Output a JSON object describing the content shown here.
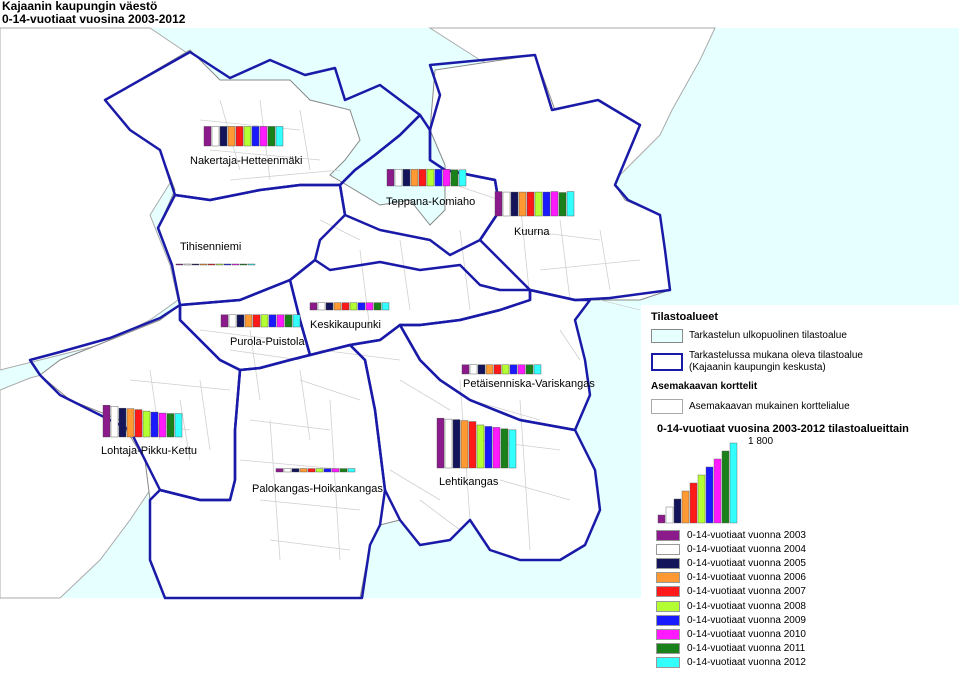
{
  "header": {
    "title": "Kajaanin kaupungin väestö",
    "subtitle": "0-14-vuotiaat vuosina 2003-2012"
  },
  "colors": {
    "sea": "#e6ffff",
    "land": "#ffffff",
    "boundary": "#1a1aa8",
    "years": [
      "#8b1a8b",
      "#ffffff",
      "#14145a",
      "#ff9933",
      "#ff1a1a",
      "#b3ff33",
      "#1a1aff",
      "#ff1aff",
      "#1a801a",
      "#33ffff"
    ]
  },
  "areas": [
    {
      "name": "Nakertaja-Hetteenmäki"
    },
    {
      "name": "Teppana-Komiaho"
    },
    {
      "name": "Kuurna"
    },
    {
      "name": "Tihisenniemi"
    },
    {
      "name": "Keskikaupunki"
    },
    {
      "name": "Purola-Puistola"
    },
    {
      "name": "Petäisenniska-Variskangas"
    },
    {
      "name": "Lohtaja-Pikku-Kettu"
    },
    {
      "name": "Palokangas-Hoikankangas"
    },
    {
      "name": "Lehtikangas"
    }
  ],
  "legend": {
    "title": "Tilastoalueet",
    "outside_label": "Tarkastelun ulkopuolinen tilastoalue",
    "inside_label_1": "Tarkastelussa mukana oleva tilastoalue",
    "inside_label_2": "(Kajaanin kaupungin keskusta)",
    "blocks_title": "Asemakaavan korttelit",
    "blocks_label": "Asemakaavan mukainen korttelialue",
    "chart_title": "0-14-vuotiaat vuosina 2003-2012 tilastoalueittain",
    "scale_value": "1 800",
    "years": [
      "0-14-vuotiaat vuonna 2003",
      "0-14-vuotiaat vuonna 2004",
      "0-14-vuotiaat vuonna 2005",
      "0-14-vuotiaat vuonna 2006",
      "0-14-vuotiaat vuonna 2007",
      "0-14-vuotiaat vuonna 2008",
      "0-14-vuotiaat vuonna 2009",
      "0-14-vuotiaat vuonna 2010",
      "0-14-vuotiaat vuonna 2011",
      "0-14-vuotiaat vuonna 2012"
    ]
  },
  "chart_data": {
    "type": "bar",
    "scale_max": 1800,
    "categories": [
      "2003",
      "2004",
      "2005",
      "2006",
      "2007",
      "2008",
      "2009",
      "2010",
      "2011",
      "2012"
    ],
    "series": [
      {
        "name": "Nakertaja-Hetteenmäki",
        "values": [
          400,
          400,
          400,
          400,
          400,
          400,
          400,
          400,
          400,
          400
        ]
      },
      {
        "name": "Teppana-Komiaho",
        "values": [
          340,
          340,
          340,
          340,
          340,
          340,
          340,
          340,
          330,
          330
        ]
      },
      {
        "name": "Kuurna",
        "values": [
          500,
          490,
          490,
          490,
          490,
          490,
          490,
          500,
          480,
          500
        ]
      },
      {
        "name": "Tihisenniemi",
        "values": [
          3,
          3,
          3,
          3,
          3,
          3,
          3,
          3,
          3,
          3
        ]
      },
      {
        "name": "Keskikaupunki",
        "values": [
          150,
          150,
          150,
          150,
          150,
          150,
          150,
          150,
          150,
          150
        ]
      },
      {
        "name": "Purola-Puistola",
        "values": [
          250,
          250,
          250,
          250,
          250,
          250,
          250,
          250,
          250,
          250
        ]
      },
      {
        "name": "Petäisenniska-Variskangas",
        "values": [
          190,
          190,
          190,
          190,
          190,
          190,
          190,
          190,
          190,
          190
        ]
      },
      {
        "name": "Lohtaja-Pikku-Kettu",
        "values": [
          650,
          630,
          590,
          580,
          560,
          530,
          510,
          490,
          480,
          480
        ]
      },
      {
        "name": "Palokangas-Hoikankangas",
        "values": [
          70,
          70,
          70,
          70,
          70,
          70,
          70,
          70,
          70,
          70
        ]
      },
      {
        "name": "Lehtikangas",
        "values": [
          1020,
          1000,
          990,
          970,
          950,
          880,
          850,
          830,
          800,
          780
        ]
      }
    ]
  }
}
